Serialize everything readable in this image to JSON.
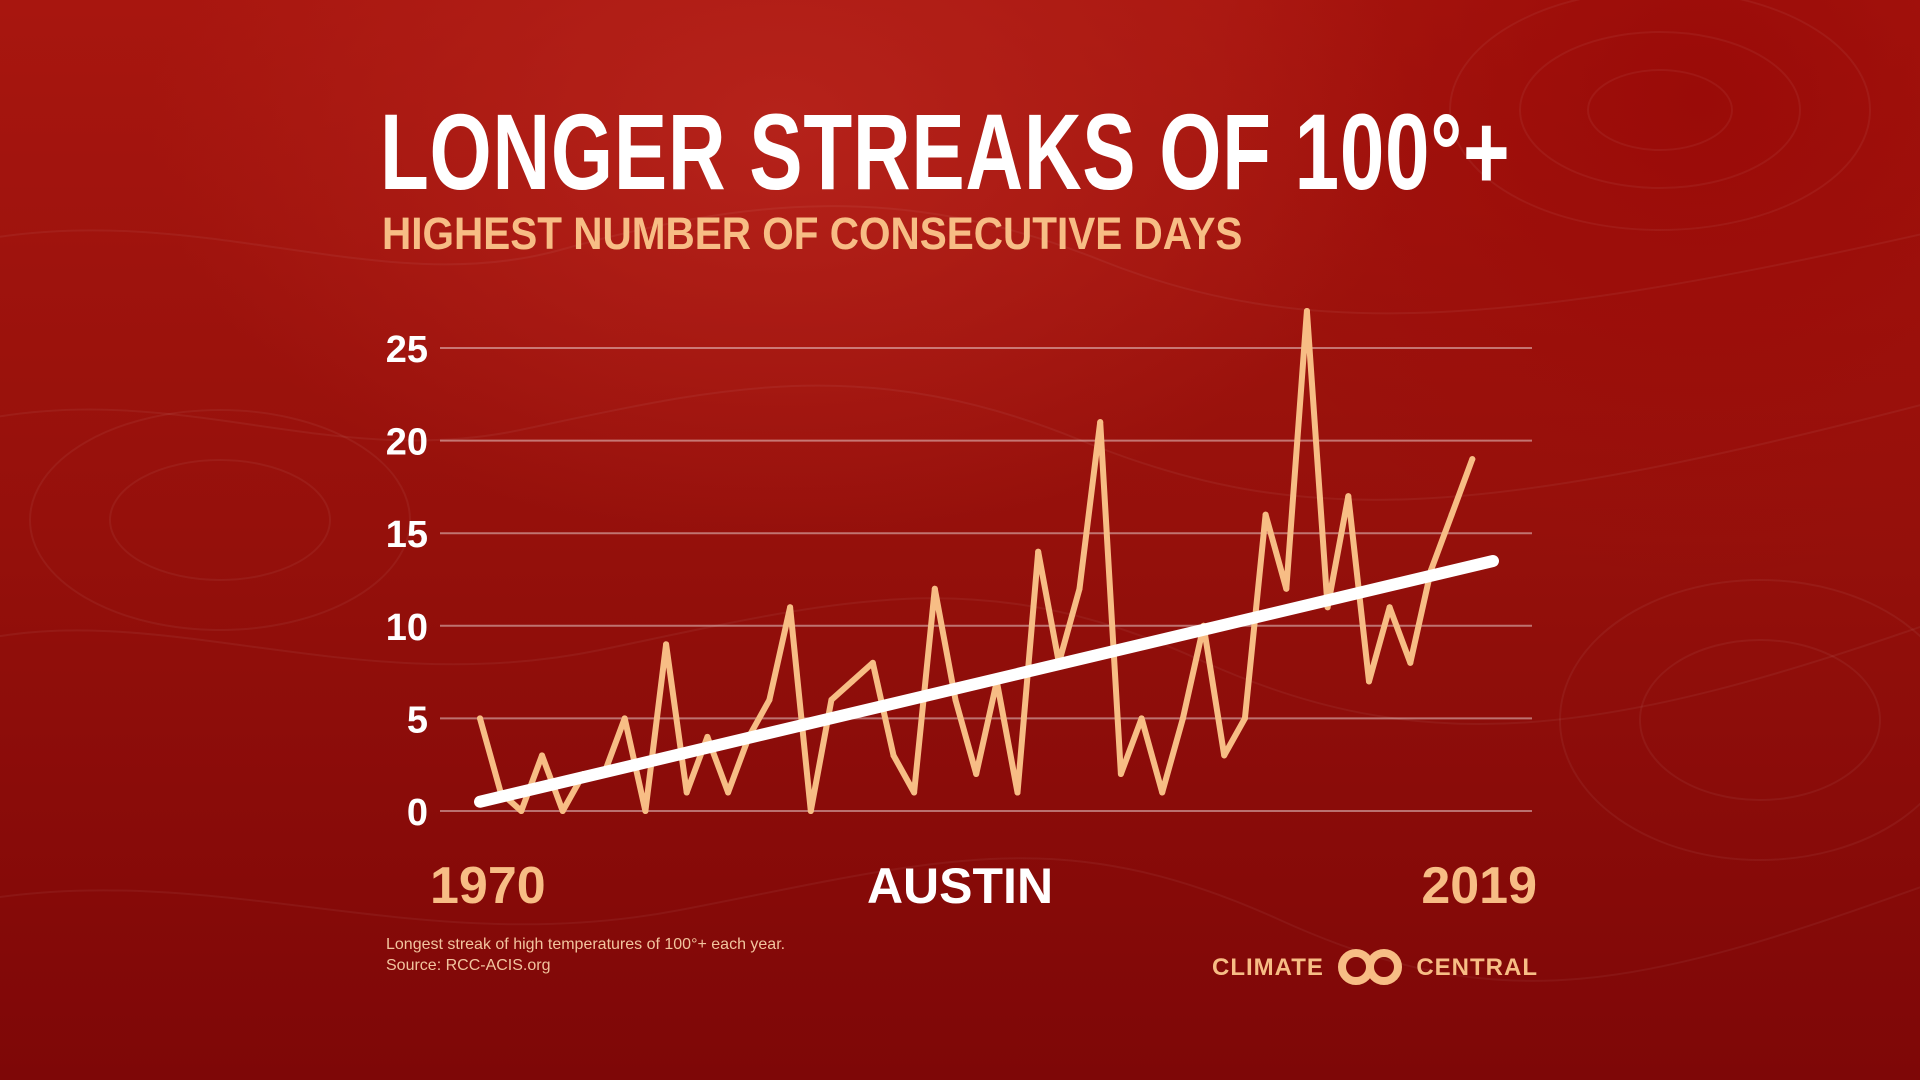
{
  "title": "LONGER STREAKS OF 100°+",
  "subtitle": "HIGHEST NUMBER OF CONSECUTIVE DAYS",
  "footnote": {
    "line1": "Longest streak of high temperatures of 100°+  each year.",
    "line2": "Source: RCC-ACIS.org"
  },
  "brand": {
    "left": "CLIMATE",
    "right": "CENTRAL",
    "logo_icon": "interlocking-rings-icon"
  },
  "colors": {
    "series": "#f7bd85",
    "trend": "#ffffff",
    "accent_text": "#f7bd85",
    "background": "#9a120c"
  },
  "chart_data": {
    "type": "line",
    "location_label": "AUSTIN",
    "x_start_label": "1970",
    "x_end_label": "2019",
    "xlim": [
      1970,
      2019
    ],
    "ylim": [
      0,
      27
    ],
    "yticks": [
      0,
      5,
      10,
      15,
      20,
      25
    ],
    "grid": true,
    "x": [
      1970,
      1971,
      1972,
      1973,
      1974,
      1975,
      1976,
      1977,
      1978,
      1979,
      1980,
      1981,
      1982,
      1983,
      1984,
      1985,
      1986,
      1987,
      1988,
      1989,
      1990,
      1991,
      1992,
      1993,
      1994,
      1995,
      1996,
      1997,
      1998,
      1999,
      2000,
      2001,
      2002,
      2003,
      2004,
      2005,
      2006,
      2007,
      2008,
      2009,
      2010,
      2011,
      2012,
      2013,
      2014,
      2015,
      2016,
      2017,
      2018,
      2019
    ],
    "series": [
      {
        "values": [
          5,
          1,
          0,
          3,
          0,
          2,
          2,
          5,
          0,
          9,
          1,
          4,
          1,
          4,
          6,
          11,
          0,
          6,
          7,
          8,
          3,
          1,
          12,
          6,
          2,
          7,
          1,
          14,
          8,
          12,
          21,
          2,
          5,
          1,
          5,
          10,
          3,
          5,
          16,
          12,
          27,
          11,
          17,
          7,
          11,
          8,
          13,
          16,
          19,
          null
        ]
      }
    ],
    "trend": {
      "start": [
        1970,
        0.5
      ],
      "end": [
        2019,
        13.5
      ]
    }
  }
}
